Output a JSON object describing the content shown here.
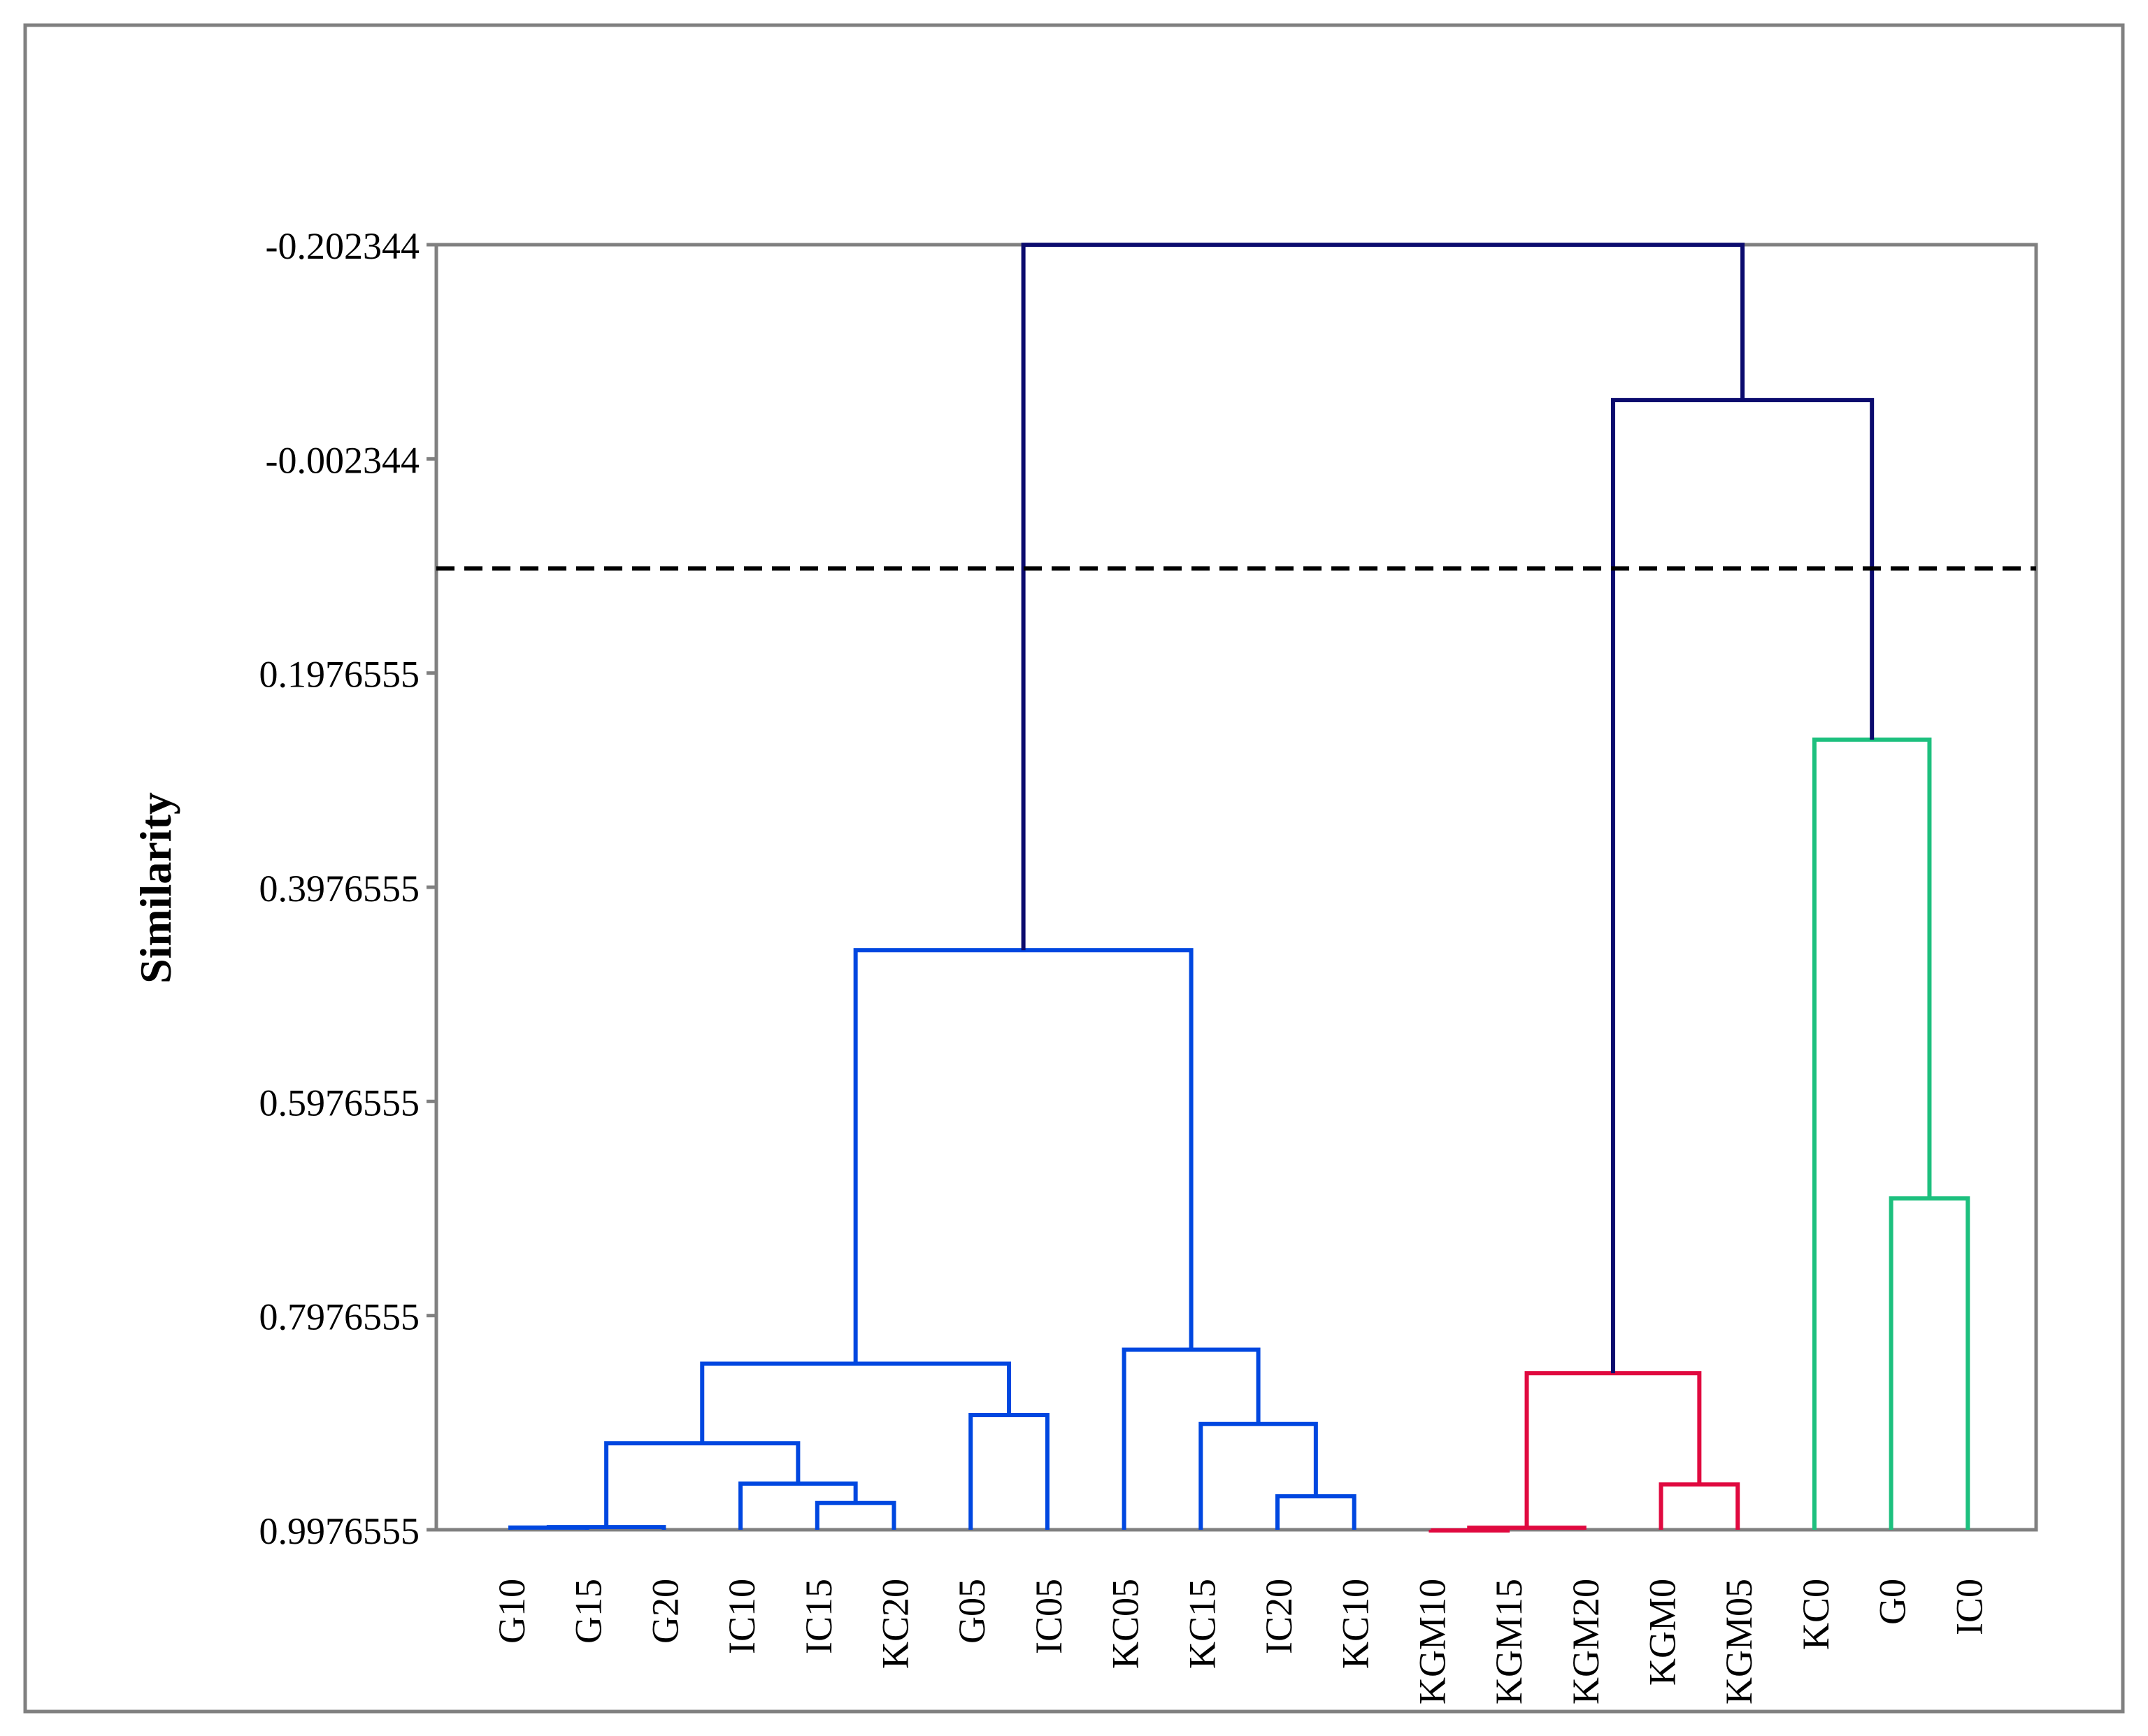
{
  "chart_data": {
    "type": "dendrogram",
    "title": "",
    "xlabel": "",
    "ylabel": "Similarity",
    "ylim": [
      -0.202344,
      0.9976555
    ],
    "y_axis_inverted": true,
    "y_ticks": [
      -0.202344,
      -0.002344,
      0.1976555,
      0.3976555,
      0.5976555,
      0.7976555,
      0.9976555
    ],
    "y_tick_labels": [
      "-0.202344",
      "-0.002344",
      "0.1976555",
      "0.3976555",
      "0.5976555",
      "0.7976555",
      "0.9976555"
    ],
    "leaves": [
      "G10",
      "G15",
      "G20",
      "IC10",
      "IC15",
      "KC20",
      "G05",
      "IC05",
      "KC05",
      "KC15",
      "IC20",
      "KC10",
      "KGM10",
      "KGM15",
      "KGM20",
      "KGM0",
      "KGM05",
      "KC0",
      "G0",
      "IC0"
    ],
    "cutoff_similarity": 0.1
  },
  "colors": {
    "cluster_1": "#0047E0",
    "cluster_2": "#E0093F",
    "cluster_3": "#1DC07E",
    "root": "#0B0B6E",
    "axis": "#808080",
    "cutoff": "#000000"
  },
  "merges": [
    {
      "a": "L0",
      "b": "L1",
      "sim": 0.9956,
      "color": "cluster_1"
    },
    {
      "a": "M0",
      "b": "L2",
      "sim": 0.9951,
      "color": "cluster_1"
    },
    {
      "a": "L4",
      "b": "L5",
      "sim": 0.9727,
      "color": "cluster_1"
    },
    {
      "a": "L3",
      "b": "M2",
      "sim": 0.9546,
      "color": "cluster_1"
    },
    {
      "a": "M1",
      "b": "M3",
      "sim": 0.9169,
      "color": "cluster_1"
    },
    {
      "a": "L6",
      "b": "L7",
      "sim": 0.8906,
      "color": "cluster_1"
    },
    {
      "a": "M4",
      "b": "M5",
      "sim": 0.8426,
      "color": "cluster_1"
    },
    {
      "a": "L10",
      "b": "L11",
      "sim": 0.9664,
      "color": "cluster_1"
    },
    {
      "a": "L9",
      "b": "M7",
      "sim": 0.8989,
      "color": "cluster_1"
    },
    {
      "a": "L8",
      "b": "M8",
      "sim": 0.8295,
      "color": "cluster_1"
    },
    {
      "a": "M6",
      "b": "M9",
      "sim": 0.4565,
      "color": "cluster_1"
    },
    {
      "a": "L12",
      "b": "L13",
      "sim": 0.9983,
      "color": "cluster_2"
    },
    {
      "a": "M11",
      "b": "L14",
      "sim": 0.9958,
      "color": "cluster_2"
    },
    {
      "a": "L15",
      "b": "L16",
      "sim": 0.9554,
      "color": "cluster_2"
    },
    {
      "a": "M12",
      "b": "M13",
      "sim": 0.8515,
      "color": "cluster_2"
    },
    {
      "a": "L18",
      "b": "L19",
      "sim": 0.6883,
      "color": "cluster_3"
    },
    {
      "a": "L17",
      "b": "M15",
      "sim": 0.2598,
      "color": "cluster_3"
    },
    {
      "a": "M14",
      "b": "M16",
      "sim": -0.0573,
      "color": "root"
    },
    {
      "a": "M10",
      "b": "M17",
      "sim": -0.2023,
      "color": "root"
    }
  ]
}
